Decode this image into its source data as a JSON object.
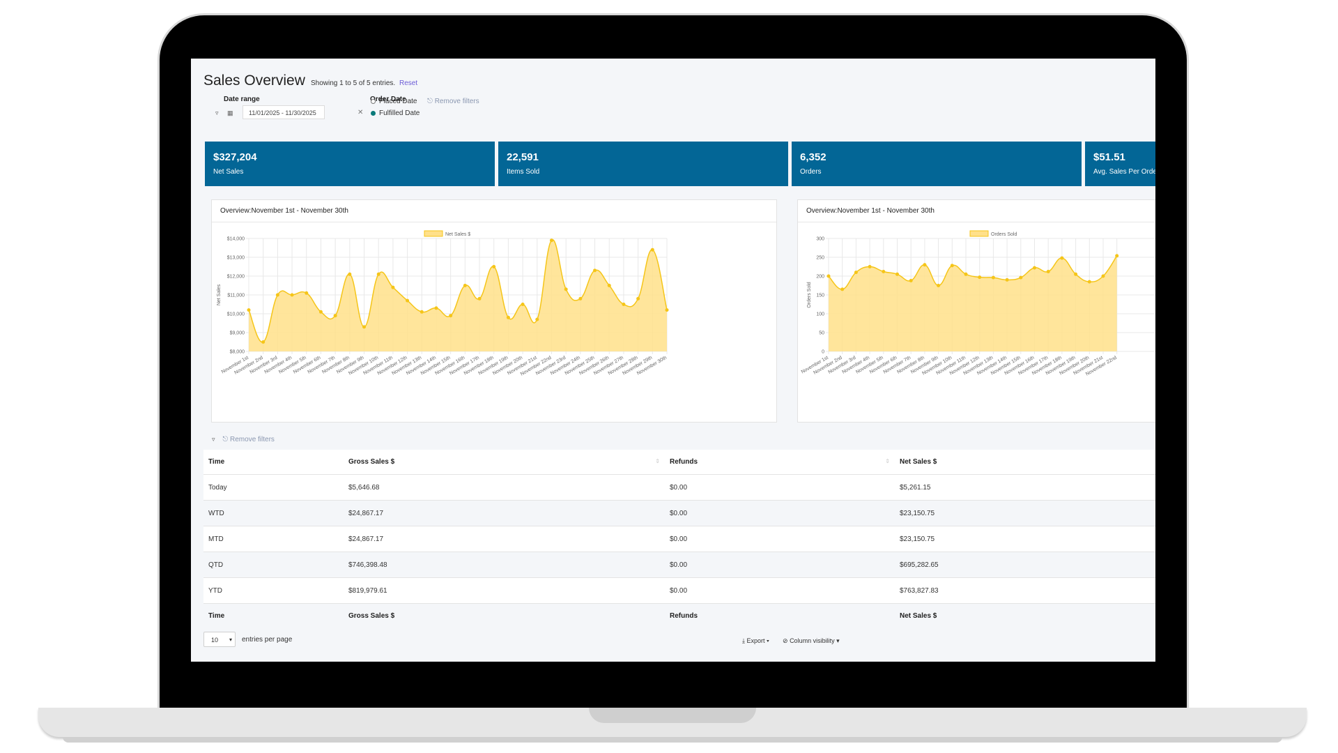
{
  "page": {
    "title": "Sales Overview",
    "entries_info": "Showing 1 to 5 of 5 entries.",
    "reset_label": "Reset"
  },
  "filters": {
    "date_range_label": "Date range",
    "date_range_value": "11/01/2025 - 11/30/2025",
    "order_date_label": "Order Date",
    "options": [
      "Placed Date",
      "Fulfilled Date"
    ],
    "selected": "Fulfilled Date",
    "remove_filters_label": "Remove filters"
  },
  "kpis": [
    {
      "value": "$327,204",
      "label": "Net Sales"
    },
    {
      "value": "22,591",
      "label": "Items Sold"
    },
    {
      "value": "6,352",
      "label": "Orders"
    },
    {
      "value": "$51.51",
      "label": "Avg. Sales Per Order"
    }
  ],
  "colors": {
    "kpi_bg": "#036696",
    "chart_fill": "#ffe08a",
    "chart_line": "#f5c518",
    "link": "#6b5bd6"
  },
  "chart_data": [
    {
      "type": "area",
      "title": "Overview:November 1st - November 30th",
      "ylabel": "Net Sales",
      "ylim": [
        8000,
        14000
      ],
      "yticks": [
        "$8,000",
        "$9,000",
        "$10,000",
        "$11,000",
        "$12,000",
        "$13,000",
        "$14,000"
      ],
      "grid": true,
      "legend": "top",
      "categories": [
        "November 1st",
        "November 2nd",
        "November 3rd",
        "November 4th",
        "November 5th",
        "November 6th",
        "November 7th",
        "November 8th",
        "November 9th",
        "November 10th",
        "November 11th",
        "November 12th",
        "November 13th",
        "November 14th",
        "November 15th",
        "November 16th",
        "November 17th",
        "November 18th",
        "November 19th",
        "November 20th",
        "November 21st",
        "November 22nd",
        "November 23rd",
        "November 24th",
        "November 25th",
        "November 26th",
        "November 27th",
        "November 28th",
        "November 29th",
        "November 30th"
      ],
      "series": [
        {
          "name": "Net Sales $",
          "values": [
            10200,
            8500,
            11000,
            11000,
            11100,
            10100,
            9900,
            12100,
            9300,
            12100,
            11400,
            10700,
            10100,
            10300,
            9900,
            11500,
            10800,
            12500,
            9800,
            10500,
            9700,
            13900,
            11300,
            10800,
            12300,
            11500,
            10500,
            10800,
            13400,
            10200
          ]
        }
      ]
    },
    {
      "type": "area",
      "title": "Overview:November 1st - November 30th",
      "ylabel": "Orders Sold",
      "ylim": [
        0,
        300
      ],
      "yticks": [
        "0",
        "50",
        "100",
        "150",
        "200",
        "250",
        "300"
      ],
      "grid": true,
      "legend": "top",
      "categories": [
        "November 1st",
        "November 2nd",
        "November 3rd",
        "November 4th",
        "November 5th",
        "November 6th",
        "November 7th",
        "November 8th",
        "November 9th",
        "November 10th",
        "November 11th",
        "November 12th",
        "November 13th",
        "November 14th",
        "November 15th",
        "November 16th",
        "November 17th",
        "November 18th",
        "November 19th",
        "November 20th",
        "November 21st",
        "November 22nd"
      ],
      "series": [
        {
          "name": "Orders Sold",
          "values": [
            200,
            165,
            210,
            225,
            212,
            205,
            188,
            230,
            175,
            228,
            205,
            197,
            196,
            190,
            196,
            222,
            212,
            248,
            205,
            185,
            200,
            254
          ]
        }
      ]
    }
  ],
  "table": {
    "filter_label": "Remove filters",
    "columns": [
      "Time",
      "Gross Sales $",
      "Refunds",
      "Net Sales $"
    ],
    "rows": [
      [
        "Today",
        "$5,646.68",
        "$0.00",
        "$5,261.15"
      ],
      [
        "WTD",
        "$24,867.17",
        "$0.00",
        "$23,150.75"
      ],
      [
        "MTD",
        "$24,867.17",
        "$0.00",
        "$23,150.75"
      ],
      [
        "QTD",
        "$746,398.48",
        "$0.00",
        "$695,282.65"
      ],
      [
        "YTD",
        "$819,979.61",
        "$0.00",
        "$763,827.83"
      ]
    ],
    "page_size": "10",
    "page_size_label": "entries per page",
    "export_label": "Export",
    "column_visibility_label": "Column visibility"
  }
}
